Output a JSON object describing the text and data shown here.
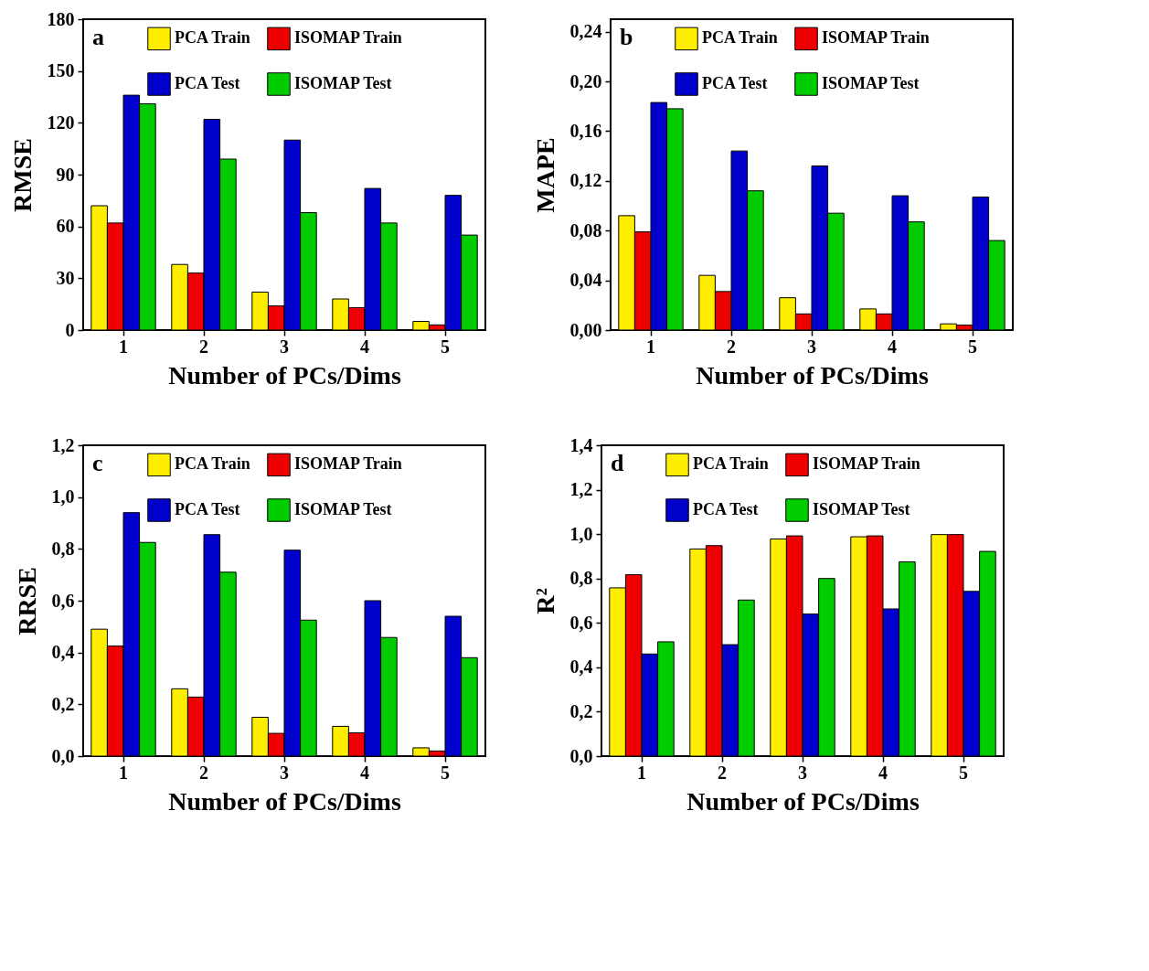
{
  "chart_data": [
    {
      "type": "bar",
      "ylabel": "RMSE",
      "xlabel": "Number of PCs/Dims",
      "annotations": [
        "a"
      ],
      "categories": [
        "1",
        "2",
        "3",
        "4",
        "5"
      ],
      "legend": "top",
      "grid": false,
      "ylim": [
        0,
        180
      ],
      "yticks": [
        0,
        30,
        60,
        90,
        120,
        150,
        180
      ],
      "series": [
        {
          "name": "PCA Train",
          "color": "#ffee00",
          "values": [
            72,
            38,
            22,
            18,
            5
          ]
        },
        {
          "name": "ISOMAP Train",
          "color": "#ee0000",
          "values": [
            62,
            33,
            14,
            13,
            3
          ]
        },
        {
          "name": "PCA Test",
          "color": "#0000cc",
          "values": [
            136,
            122,
            110,
            82,
            78
          ]
        },
        {
          "name": "ISOMAP Test",
          "color": "#00cc00",
          "values": [
            131,
            99,
            68,
            62,
            55
          ]
        }
      ]
    },
    {
      "type": "bar",
      "ylabel": "MAPE",
      "xlabel": "Number of PCs/Dims",
      "annotations": [
        "b"
      ],
      "categories": [
        "1",
        "2",
        "3",
        "4",
        "5"
      ],
      "legend": "top",
      "grid": false,
      "ylim": [
        0,
        0.25
      ],
      "yticks": [
        {
          "value": 0,
          "label": "0,00"
        },
        {
          "value": 0.04,
          "label": "0,04"
        },
        {
          "value": 0.08,
          "label": "0,08"
        },
        {
          "value": 0.12,
          "label": "0,12"
        },
        {
          "value": 0.16,
          "label": "0,16"
        },
        {
          "value": 0.2,
          "label": "0,20"
        },
        {
          "value": 0.24,
          "label": "0,24"
        }
      ],
      "series": [
        {
          "name": "PCA Train",
          "color": "#ffee00",
          "values": [
            0.092,
            0.044,
            0.026,
            0.017,
            0.005
          ]
        },
        {
          "name": "ISOMAP Train",
          "color": "#ee0000",
          "values": [
            0.079,
            0.031,
            0.013,
            0.013,
            0.004
          ]
        },
        {
          "name": "PCA Test",
          "color": "#0000cc",
          "values": [
            0.183,
            0.144,
            0.132,
            0.108,
            0.107
          ]
        },
        {
          "name": "ISOMAP Test",
          "color": "#00cc00",
          "values": [
            0.178,
            0.112,
            0.094,
            0.087,
            0.072
          ]
        }
      ]
    },
    {
      "type": "bar",
      "ylabel": "RRSE",
      "xlabel": "Number of PCs/Dims",
      "annotations": [
        "c"
      ],
      "categories": [
        "1",
        "2",
        "3",
        "4",
        "5"
      ],
      "legend": "top",
      "grid": false,
      "ylim": [
        0,
        1.2
      ],
      "yticks": [
        {
          "value": 0,
          "label": "0,0"
        },
        {
          "value": 0.2,
          "label": "0,2"
        },
        {
          "value": 0.4,
          "label": "0,4"
        },
        {
          "value": 0.6,
          "label": "0,6"
        },
        {
          "value": 0.8,
          "label": "0,8"
        },
        {
          "value": 1.0,
          "label": "1,0"
        },
        {
          "value": 1.2,
          "label": "1,2"
        }
      ],
      "series": [
        {
          "name": "PCA Train",
          "color": "#ffee00",
          "values": [
            0.49,
            0.26,
            0.15,
            0.115,
            0.032
          ]
        },
        {
          "name": "ISOMAP Train",
          "color": "#ee0000",
          "values": [
            0.425,
            0.228,
            0.088,
            0.09,
            0.02
          ]
        },
        {
          "name": "PCA Test",
          "color": "#0000cc",
          "values": [
            0.94,
            0.855,
            0.795,
            0.6,
            0.54
          ]
        },
        {
          "name": "ISOMAP Test",
          "color": "#00cc00",
          "values": [
            0.825,
            0.71,
            0.525,
            0.458,
            0.38
          ]
        }
      ]
    },
    {
      "type": "bar",
      "ylabel": "R²",
      "xlabel": "Number of PCs/Dims",
      "annotations": [
        "d"
      ],
      "categories": [
        "1",
        "2",
        "3",
        "4",
        "5"
      ],
      "legend": "top",
      "grid": false,
      "ylim": [
        0,
        1.4
      ],
      "yticks": [
        {
          "value": 0,
          "label": "0,0"
        },
        {
          "value": 0.2,
          "label": "0,2"
        },
        {
          "value": 0.4,
          "label": "0,4"
        },
        {
          "value": 0.6,
          "label": "0,6"
        },
        {
          "value": 0.8,
          "label": "0,8"
        },
        {
          "value": 1.0,
          "label": "1,0"
        },
        {
          "value": 1.2,
          "label": "1,2"
        },
        {
          "value": 1.4,
          "label": "1,4"
        }
      ],
      "series": [
        {
          "name": "PCA Train",
          "color": "#ffee00",
          "values": [
            0.758,
            0.933,
            0.978,
            0.988,
            0.998
          ]
        },
        {
          "name": "ISOMAP Train",
          "color": "#ee0000",
          "values": [
            0.817,
            0.948,
            0.992,
            0.992,
            0.998
          ]
        },
        {
          "name": "PCA Test",
          "color": "#0000cc",
          "values": [
            0.46,
            0.502,
            0.64,
            0.663,
            0.742
          ]
        },
        {
          "name": "ISOMAP Test",
          "color": "#00cc00",
          "values": [
            0.515,
            0.703,
            0.8,
            0.875,
            0.922
          ]
        }
      ]
    }
  ]
}
